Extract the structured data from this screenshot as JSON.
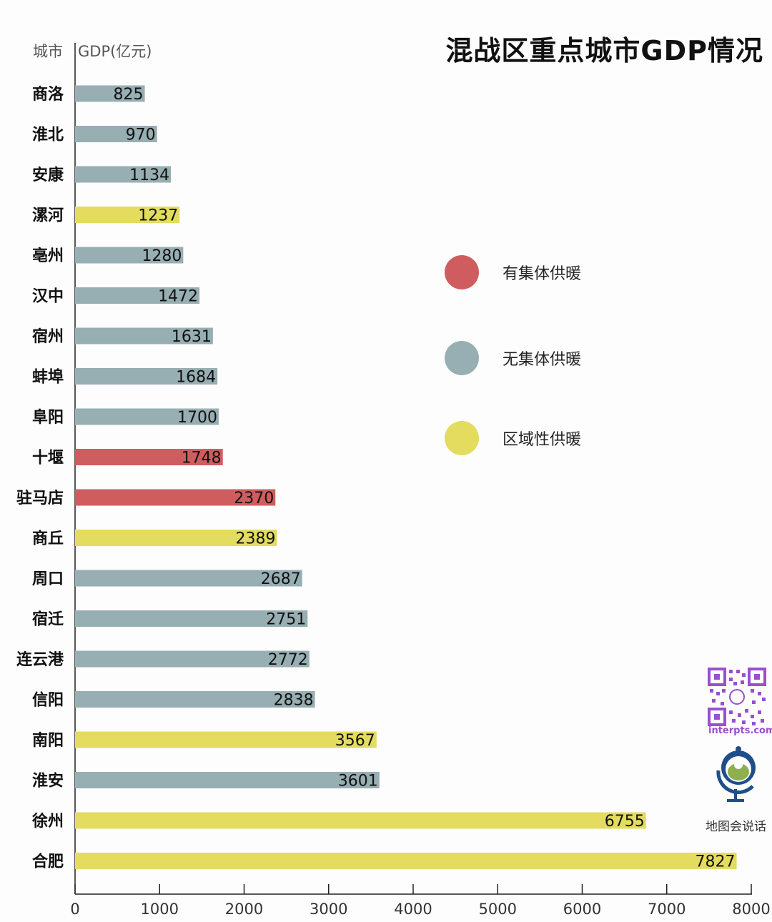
{
  "chart_data": {
    "type": "bar",
    "orientation": "horizontal",
    "title": "混战区重点城市GDP情况",
    "category_header": "城市",
    "value_header": "GDP(亿元)",
    "categories": [
      "商洛",
      "淮北",
      "安康",
      "漯河",
      "亳州",
      "汉中",
      "宿州",
      "蚌埠",
      "阜阳",
      "十堰",
      "驻马店",
      "商丘",
      "周口",
      "宿迁",
      "连云港",
      "信阳",
      "南阳",
      "淮安",
      "徐州",
      "合肥"
    ],
    "values": [
      825,
      970,
      1134,
      1237,
      1280,
      1472,
      1631,
      1684,
      1700,
      1748,
      2370,
      2389,
      2687,
      2751,
      2772,
      2838,
      3567,
      3601,
      6755,
      7827
    ],
    "heating": [
      "none",
      "none",
      "none",
      "regional",
      "none",
      "none",
      "none",
      "none",
      "none",
      "central",
      "central",
      "regional",
      "none",
      "none",
      "none",
      "none",
      "regional",
      "none",
      "regional",
      "regional"
    ],
    "xlim": [
      0,
      8000
    ],
    "xticks": [
      0,
      1000,
      2000,
      3000,
      4000,
      5000,
      6000,
      7000,
      8000
    ],
    "grid": false,
    "legend_position": "right",
    "legend": [
      {
        "key": "central",
        "label": "有集体供暖",
        "color": "#cf5d5f"
      },
      {
        "key": "none",
        "label": "无集体供暖",
        "color": "#97aeb2"
      },
      {
        "key": "regional",
        "label": "区域性供暖",
        "color": "#e3dc5e"
      }
    ]
  },
  "watermark": {
    "url": "interpts.com",
    "brand": "地图会说话"
  }
}
